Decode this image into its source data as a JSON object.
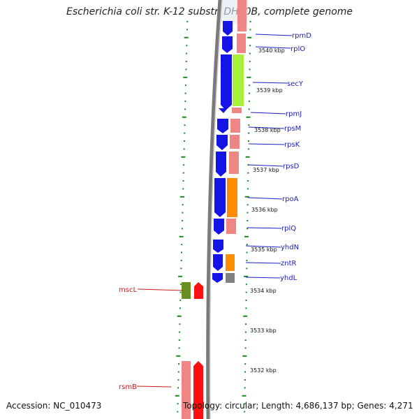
{
  "title": "Escherichia coli str. K-12 substr. DH10B, complete genome",
  "accession": "Accession: NC_010473",
  "topology": "Topology: circular; Length: 4,686,137 bp; Genes: 4,271",
  "right_genes": [
    "rpmD",
    "rplO",
    "secY",
    "rpmJ",
    "rpsM",
    "rpsK",
    "rpsD",
    "rpoA",
    "rplQ",
    "yhdN",
    "zntR",
    "yhdL"
  ],
  "left_genes": [
    "mscL",
    "rsmB"
  ],
  "kbp_ticks": [
    "3540 kbp",
    "3539 kbp",
    "3538 kbp",
    "3537 kbp",
    "3536 kbp",
    "3535 kbp",
    "3534 kbp",
    "3533 kbp",
    "3532 kbp"
  ],
  "colors": {
    "reverse_strand": "#1414e6",
    "forward_strand": "#ff1010",
    "pink": "#ef8585",
    "green": "#a8f03c",
    "orange": "#ff8c00",
    "olive": "#6b8e23",
    "gray": "#808080",
    "label_blue": "#1c1cbf",
    "label_red": "#c81c1c",
    "tick_green": "#1a8a1a"
  }
}
